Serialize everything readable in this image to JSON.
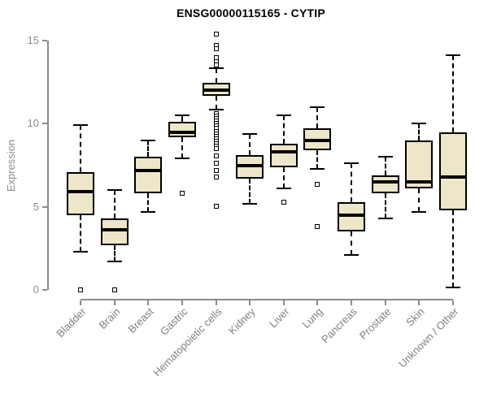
{
  "chart_data": {
    "type": "box",
    "title": "ENSG00000115165 - CYTIP",
    "ylabel": "Expression",
    "xlabel": "",
    "ylim": [
      0,
      15
    ],
    "yticks": [
      0,
      5,
      10,
      15
    ],
    "grid": false,
    "legend": "none",
    "categories": [
      "Bladder",
      "Brain",
      "Breast",
      "Gastric",
      "Hematopoietic cells",
      "Kidney",
      "Liver",
      "Lung",
      "Pancreas",
      "Prostate",
      "Skin",
      "Unknown / Other"
    ],
    "boxes": [
      {
        "category": "Bladder",
        "low": 2.3,
        "q1": 4.5,
        "median": 5.9,
        "q3": 7.1,
        "high": 9.9,
        "outliers": [
          0
        ]
      },
      {
        "category": "Brain",
        "low": 1.7,
        "q1": 2.7,
        "median": 3.6,
        "q3": 4.3,
        "high": 6.0,
        "outliers": [
          0
        ]
      },
      {
        "category": "Breast",
        "low": 4.7,
        "q1": 5.8,
        "median": 7.2,
        "q3": 8.0,
        "high": 9.0,
        "outliers": []
      },
      {
        "category": "Gastric",
        "low": 7.9,
        "q1": 9.2,
        "median": 9.5,
        "q3": 10.1,
        "high": 10.5,
        "outliers": [
          5.8
        ]
      },
      {
        "category": "Hematopoietic cells",
        "low": 10.85,
        "q1": 11.7,
        "median": 12.0,
        "q3": 12.45,
        "high": 13.35,
        "outliers": [
          15.4,
          14.7,
          14.5,
          13.95,
          13.75,
          13.55,
          10.6,
          10.45,
          10.3,
          10.15,
          10.0,
          9.85,
          9.7,
          9.55,
          9.4,
          9.25,
          9.1,
          8.95,
          8.8,
          8.65,
          8.5,
          8.05,
          7.6,
          7.2,
          6.8,
          5.05
        ]
      },
      {
        "category": "Kidney",
        "low": 5.2,
        "q1": 6.7,
        "median": 7.5,
        "q3": 8.1,
        "high": 9.4,
        "outliers": []
      },
      {
        "category": "Liver",
        "low": 6.1,
        "q1": 7.4,
        "median": 8.3,
        "q3": 8.8,
        "high": 10.5,
        "outliers": [
          5.3
        ]
      },
      {
        "category": "Lung",
        "low": 7.3,
        "q1": 8.4,
        "median": 9.0,
        "q3": 9.7,
        "high": 11.0,
        "outliers": [
          6.35,
          3.8
        ]
      },
      {
        "category": "Pancreas",
        "low": 2.1,
        "q1": 3.5,
        "median": 4.5,
        "q3": 5.3,
        "high": 7.6,
        "outliers": []
      },
      {
        "category": "Prostate",
        "low": 4.3,
        "q1": 5.8,
        "median": 6.5,
        "q3": 6.9,
        "high": 8.0,
        "outliers": []
      },
      {
        "category": "Skin",
        "low": 4.7,
        "q1": 6.1,
        "median": 6.5,
        "q3": 9.0,
        "high": 10.0,
        "outliers": []
      },
      {
        "category": "Unknown / Other",
        "low": 0.15,
        "q1": 4.8,
        "median": 6.8,
        "q3": 9.5,
        "high": 14.1,
        "outliers": []
      }
    ],
    "colors": {
      "box_fill": "#ede6c9",
      "box_line": "#000000",
      "median_line": "#000000",
      "whisker_line": "#000000",
      "axis_line": "#8c8c8c",
      "tick_text": "#8c8c8c",
      "category_text": "#808080",
      "title_text": "#000000",
      "background": "#ffffff"
    }
  }
}
